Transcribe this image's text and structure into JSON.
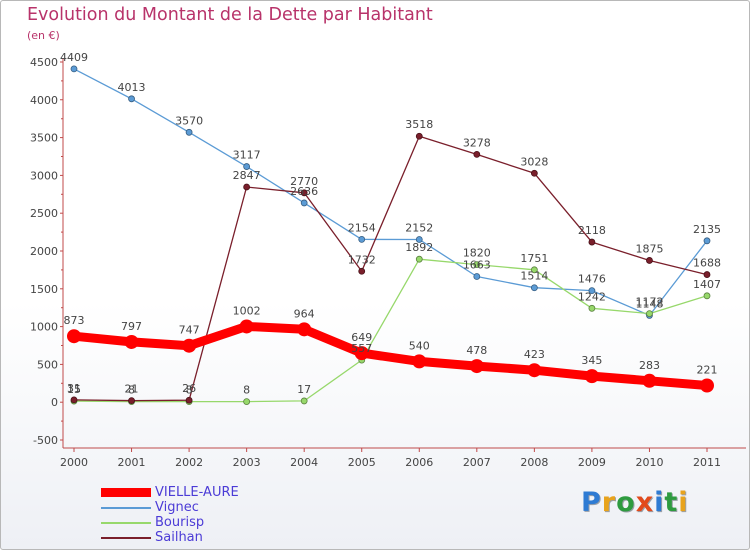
{
  "header": {
    "title": "Evolution du Montant de la Dette par Habitant",
    "subtitle": "(en €)"
  },
  "chart_data": {
    "type": "line",
    "title": "Evolution du Montant de la Dette par Habitant",
    "ylabel": "(en €)",
    "xlabel": "",
    "categories": [
      "2000",
      "2001",
      "2002",
      "2003",
      "2004",
      "2005",
      "2006",
      "2007",
      "2008",
      "2009",
      "2010",
      "2011"
    ],
    "ylim": [
      -500,
      4500
    ],
    "yticks": [
      -500,
      0,
      500,
      1000,
      1500,
      2000,
      2500,
      3000,
      3500,
      4000,
      4500
    ],
    "grid": false,
    "legend_position": "bottom-left",
    "series": [
      {
        "name": "Vignec",
        "color": "#5b9bd5",
        "values": [
          4409,
          4013,
          3570,
          3117,
          2636,
          2154,
          2152,
          1663,
          1514,
          1476,
          1148,
          2135
        ]
      },
      {
        "name": "Bourisp",
        "color": "#97d86b",
        "values": [
          15,
          8,
          8,
          8,
          17,
          557,
          1892,
          1820,
          1751,
          1242,
          1172,
          1407
        ]
      },
      {
        "name": "Sailhan",
        "color": "#7a1f2b",
        "values": [
          31,
          21,
          26,
          2847,
          2770,
          1732,
          3518,
          3278,
          3028,
          2118,
          1875,
          1688
        ]
      },
      {
        "name": "VIELLE-AURE",
        "color": "#ff0000",
        "highlight": true,
        "values": [
          873,
          797,
          747,
          1002,
          964,
          649,
          540,
          478,
          423,
          345,
          283,
          221
        ]
      }
    ]
  },
  "legend": {
    "items": [
      {
        "label": "VIELLE-AURE",
        "color": "#ff0000",
        "text_color": "#4b3bd6"
      },
      {
        "label": "Vignec",
        "color": "#5b9bd5",
        "text_color": "#4b3bd6"
      },
      {
        "label": "Bourisp",
        "color": "#97d86b",
        "text_color": "#4b3bd6"
      },
      {
        "label": "Sailhan",
        "color": "#7a1f2b",
        "text_color": "#4b3bd6"
      }
    ]
  },
  "logo": {
    "letters": [
      "P",
      "r",
      "o",
      "x",
      "i",
      "t",
      "i"
    ],
    "colors": [
      "#2e7bd3",
      "#e8a31c",
      "#2e9b3f",
      "#e24a1c",
      "#2e7bd3",
      "#2e9b3f",
      "#e8a31c"
    ]
  }
}
